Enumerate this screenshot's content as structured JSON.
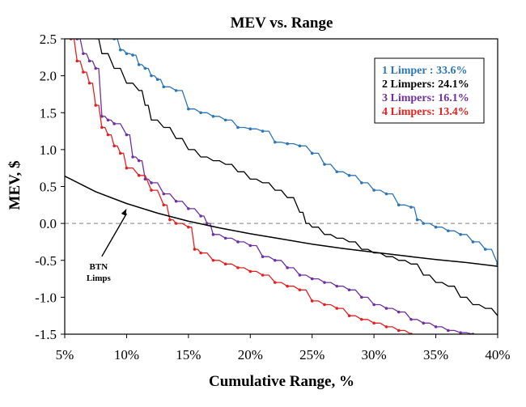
{
  "chart_data": {
    "type": "line",
    "title": "MEV vs. Range",
    "xlabel": "Cumulative Range, %",
    "ylabel": "MEV, $",
    "xlim": [
      5,
      40
    ],
    "ylim": [
      -1.5,
      2.5
    ],
    "xticks": [
      5,
      10,
      15,
      20,
      25,
      30,
      35,
      40
    ],
    "xtick_labels": [
      "5%",
      "10%",
      "15%",
      "20%",
      "25%",
      "30%",
      "35%",
      "40%"
    ],
    "yticks": [
      2.5,
      2.0,
      1.5,
      1.0,
      0.5,
      0.0,
      -0.5,
      -1.0,
      -1.5
    ],
    "ytick_labels": [
      "2.5",
      "2.0",
      "1.5",
      "1.0",
      "0.5",
      "0.0",
      "-0.5",
      "-1.0",
      "-1.5"
    ],
    "reference_line": {
      "y": 0.0,
      "style": "dashed",
      "color": "#808080"
    },
    "legend_position": "top-right",
    "series": [
      {
        "name": "1 Limper : 33.6%",
        "color": "#2e75b6",
        "markers": true,
        "x": [
          9.0,
          9.5,
          10.0,
          10.5,
          11.0,
          11.5,
          12.0,
          12.5,
          13.0,
          14.0,
          15.0,
          16.0,
          17.0,
          18.0,
          19.0,
          20.0,
          21.0,
          22.0,
          23.0,
          24.0,
          25.0,
          26.0,
          27.0,
          28.0,
          29.0,
          30.0,
          31.0,
          32.0,
          33.0,
          33.5,
          34.0,
          35.0,
          36.0,
          37.0,
          38.0,
          39.0,
          40.0
        ],
        "y": [
          2.5,
          2.35,
          2.3,
          2.28,
          2.15,
          2.1,
          2.0,
          1.95,
          1.85,
          1.8,
          1.55,
          1.5,
          1.45,
          1.4,
          1.3,
          1.28,
          1.25,
          1.1,
          1.08,
          1.05,
          0.95,
          0.8,
          0.7,
          0.65,
          0.55,
          0.45,
          0.4,
          0.25,
          0.22,
          0.05,
          0.0,
          -0.05,
          -0.1,
          -0.15,
          -0.25,
          -0.35,
          -0.55
        ]
      },
      {
        "name": "2 Limpers: 24.1%",
        "color": "#000000",
        "markers": false,
        "x": [
          7.5,
          8.0,
          9.0,
          10.0,
          11.0,
          11.5,
          12.0,
          13.0,
          14.0,
          15.0,
          16.0,
          17.0,
          18.0,
          19.0,
          20.0,
          21.0,
          22.0,
          23.0,
          24.0,
          24.5,
          25.0,
          26.0,
          27.0,
          28.0,
          29.0,
          30.0,
          31.0,
          32.0,
          33.0,
          34.0,
          35.0,
          36.0,
          37.0,
          38.0,
          39.0,
          40.0
        ],
        "y": [
          2.5,
          2.3,
          2.1,
          1.9,
          1.8,
          1.6,
          1.4,
          1.3,
          1.15,
          1.0,
          0.9,
          0.85,
          0.8,
          0.7,
          0.6,
          0.55,
          0.45,
          0.35,
          0.15,
          0.0,
          -0.05,
          -0.15,
          -0.2,
          -0.25,
          -0.35,
          -0.4,
          -0.45,
          -0.5,
          -0.55,
          -0.7,
          -0.8,
          -0.85,
          -1.0,
          -1.1,
          -1.15,
          -1.25
        ]
      },
      {
        "name": "3 Limpers: 16.1%",
        "color": "#7030a0",
        "markers": true,
        "x": [
          6.0,
          6.5,
          7.0,
          7.5,
          8.0,
          8.5,
          9.0,
          10.0,
          10.5,
          11.0,
          11.5,
          12.0,
          13.0,
          14.0,
          15.0,
          16.0,
          16.5,
          17.0,
          18.0,
          19.0,
          20.0,
          21.0,
          22.0,
          23.0,
          24.0,
          25.0,
          26.0,
          27.0,
          28.0,
          29.0,
          30.0,
          31.0,
          32.0,
          33.0,
          34.0,
          35.0,
          36.0,
          37.0,
          38.0
        ],
        "y": [
          2.5,
          2.3,
          2.2,
          2.1,
          1.45,
          1.4,
          1.35,
          1.2,
          0.9,
          0.85,
          0.6,
          0.55,
          0.4,
          0.3,
          0.2,
          0.1,
          0.0,
          -0.15,
          -0.2,
          -0.25,
          -0.3,
          -0.45,
          -0.5,
          -0.6,
          -0.7,
          -0.75,
          -0.8,
          -0.85,
          -0.9,
          -1.0,
          -1.1,
          -1.15,
          -1.2,
          -1.3,
          -1.35,
          -1.4,
          -1.45,
          -1.48,
          -1.5
        ]
      },
      {
        "name": "4 Limpers: 13.4%",
        "color": "#e32121",
        "markers": true,
        "x": [
          5.5,
          6.0,
          6.5,
          7.0,
          7.5,
          8.0,
          8.5,
          9.0,
          9.5,
          10.0,
          11.0,
          12.0,
          13.0,
          13.5,
          14.0,
          15.0,
          15.5,
          16.0,
          17.0,
          18.0,
          19.0,
          20.0,
          21.0,
          22.0,
          23.0,
          24.0,
          25.0,
          26.0,
          27.0,
          28.0,
          29.0,
          30.0,
          31.0,
          32.0,
          33.0
        ],
        "y": [
          2.5,
          2.2,
          2.05,
          1.9,
          1.6,
          1.3,
          1.2,
          1.05,
          0.95,
          0.75,
          0.65,
          0.45,
          0.25,
          0.05,
          0.0,
          -0.05,
          -0.35,
          -0.4,
          -0.5,
          -0.55,
          -0.6,
          -0.65,
          -0.7,
          -0.8,
          -0.85,
          -0.9,
          -1.05,
          -1.1,
          -1.15,
          -1.25,
          -1.3,
          -1.35,
          -1.4,
          -1.45,
          -1.5
        ]
      },
      {
        "name": "BTN Limps",
        "color": "#000000",
        "markers": false,
        "x": [
          5,
          7.5,
          10,
          12.5,
          15,
          17.5,
          20,
          22.5,
          25,
          27.5,
          30,
          32.5,
          35,
          37.5,
          40
        ],
        "y": [
          0.64,
          0.43,
          0.27,
          0.14,
          0.03,
          -0.06,
          -0.14,
          -0.21,
          -0.28,
          -0.34,
          -0.39,
          -0.44,
          -0.49,
          -0.53,
          -0.58
        ]
      }
    ],
    "annotations": [
      {
        "text": "BTN",
        "text2": "Limps",
        "points_to": {
          "x": 10.0,
          "y": 0.2
        },
        "label_at": {
          "x": 8.0,
          "y": -0.6
        }
      }
    ]
  }
}
